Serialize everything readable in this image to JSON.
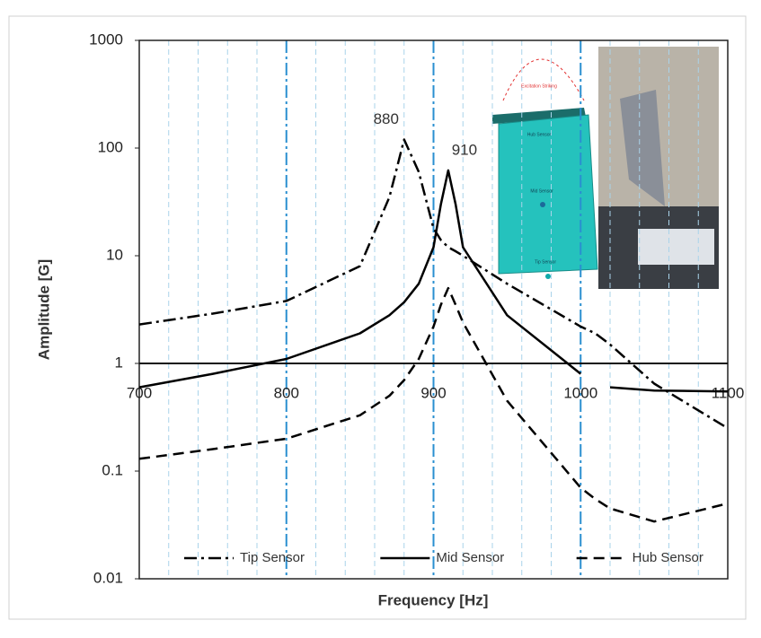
{
  "chart_data": {
    "type": "line",
    "x_label": "Frequency [Hz]",
    "y_label": "Amplitude [G]",
    "log_y": true,
    "xlim": [
      700,
      1100
    ],
    "xticks": [
      700,
      800,
      900,
      1000,
      1100
    ],
    "x_minor_ticks": [
      720,
      740,
      760,
      780,
      820,
      840,
      860,
      880,
      920,
      940,
      960,
      980,
      1020,
      1040,
      1060,
      1080
    ],
    "ylim": [
      0.01,
      1000
    ],
    "yticks": [
      0.01,
      0.1,
      1,
      10,
      100,
      1000
    ],
    "x_axis_crosses": 1,
    "grid": true,
    "legend": "bottom",
    "x": [
      700,
      750,
      800,
      850,
      870,
      880,
      890,
      900,
      905,
      910,
      915,
      920,
      950,
      1000,
      1010,
      1020,
      1050,
      1100
    ],
    "series": [
      {
        "name": "Tip Sensor",
        "color": "#000000",
        "dash": "dashdot",
        "values": [
          2.3,
          2.9,
          3.8,
          8,
          35,
          120,
          60,
          18,
          14,
          12,
          11,
          10,
          5.5,
          2.2,
          1.9,
          1.5,
          0.65,
          0.25
        ]
      },
      {
        "name": "Mid Sensor",
        "color": "#000000",
        "dash": "solid",
        "values": [
          0.6,
          0.8,
          1.1,
          1.9,
          2.8,
          3.7,
          5.5,
          12,
          30,
          62,
          30,
          12,
          2.8,
          0.8,
          null,
          0.6,
          0.56,
          0.55
        ]
      },
      {
        "name": "Hub Sensor",
        "color": "#000000",
        "dash": "dashed",
        "values": [
          0.13,
          0.16,
          0.2,
          0.33,
          0.5,
          0.7,
          1.1,
          2.2,
          3.5,
          5,
          3.5,
          2.4,
          0.45,
          0.07,
          0.055,
          0.045,
          0.034,
          0.05
        ]
      }
    ],
    "annotations": [
      {
        "text": "880",
        "x": 880,
        "y": 120
      },
      {
        "text": "910",
        "x": 910,
        "y": 62
      }
    ],
    "inset_labels": [
      "Excitation Striking",
      "Hub Sensor",
      "Mid Sensor",
      "Tip Sensor"
    ]
  }
}
